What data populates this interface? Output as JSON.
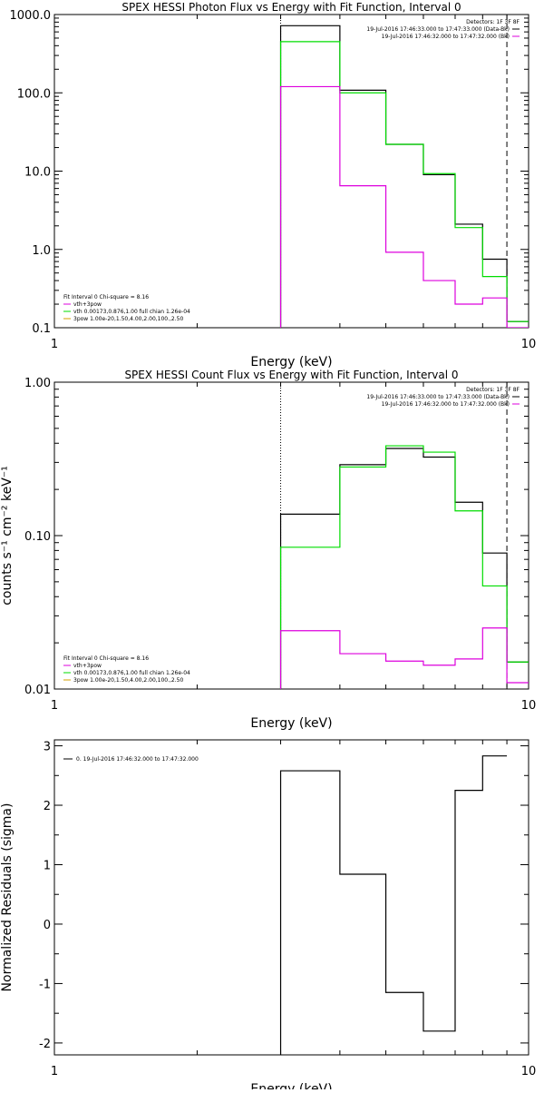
{
  "chart_data": [
    {
      "type": "line",
      "title": "SPEX HESSI Photon Flux vs Energy with Fit Function, Interval 0",
      "xlabel": "Energy (keV)",
      "ylabel": "",
      "xscale": "log",
      "yscale": "log",
      "xlim": [
        1,
        10
      ],
      "ylim": [
        0.1,
        1000
      ],
      "xticks": [
        "1",
        "10"
      ],
      "yticks": [
        "0.1",
        "1.0",
        "10.0",
        "100.0",
        "1000.0"
      ],
      "fit_range_keV": [
        3.0,
        9.0
      ],
      "edges": [
        3.0,
        4.0,
        5.0,
        6.0,
        7.0,
        8.0,
        9.0,
        10.0
      ],
      "series": [
        {
          "color": "#000000",
          "values": [
            720,
            108,
            22,
            9,
            2.1,
            0.75,
            0.12
          ]
        },
        {
          "color": "#00dd00",
          "values": [
            450,
            100,
            22,
            9.3,
            1.9,
            0.45,
            0.12
          ]
        },
        {
          "color": "#dd00dd",
          "values": [
            120,
            6.5,
            0.92,
            0.4,
            0.2,
            0.24,
            0.1
          ]
        }
      ],
      "legend_top": {
        "header": "Detectors: 1F 3F 8F",
        "entries": [
          {
            "text": "19-Jul-2016 17:46:33.000 to 17:47:33.000 (Data-Bk)",
            "color": "#000000"
          },
          {
            "text": "19-Jul-2016 17:46:32.000 to 17:47:32.000 (Bk)",
            "color": "#dd00dd"
          }
        ]
      },
      "legend_bottom": {
        "header": "Fit Interval 0   Chi-square = 8.16",
        "entries": [
          {
            "text": "vth+3pow",
            "color": "#dd00dd"
          },
          {
            "text": "vth 0.00173,0.876,1.00  full chian 1.26e-04",
            "color": "#00dd00"
          },
          {
            "text": "3pow 1.00e-20,1.50,4.00,2.00,100.,2.50",
            "color": "#d4a000"
          }
        ]
      }
    },
    {
      "type": "line",
      "title": "SPEX HESSI Count Flux vs Energy with Fit Function, Interval 0",
      "xlabel": "Energy (keV)",
      "ylabel": "counts s⁻¹ cm⁻² keV⁻¹",
      "xscale": "log",
      "yscale": "log",
      "xlim": [
        1,
        10
      ],
      "ylim": [
        0.01,
        1
      ],
      "xticks": [
        "1",
        "10"
      ],
      "yticks": [
        "0.01",
        "0.10",
        "1.00"
      ],
      "fit_range_keV": [
        3.0,
        9.0
      ],
      "edges": [
        3.0,
        4.0,
        5.0,
        6.0,
        7.0,
        8.0,
        9.0,
        10.0
      ],
      "series": [
        {
          "color": "#000000",
          "values": [
            0.138,
            0.29,
            0.37,
            0.325,
            0.165,
            0.077,
            0.015
          ]
        },
        {
          "color": "#00dd00",
          "values": [
            0.084,
            0.28,
            0.385,
            0.35,
            0.145,
            0.047,
            0.015
          ]
        },
        {
          "color": "#dd00dd",
          "values": [
            0.024,
            0.017,
            0.0152,
            0.0143,
            0.0157,
            0.025,
            0.011
          ]
        }
      ],
      "legend_top": {
        "header": "Detectors: 1F 3F 8F",
        "entries": [
          {
            "text": "19-Jul-2016 17:46:33.000 to 17:47:33.000 (Data-Bk)",
            "color": "#000000"
          },
          {
            "text": "19-Jul-2016 17:46:32.000 to 17:47:32.000 (Bk)",
            "color": "#dd00dd"
          }
        ]
      },
      "legend_bottom": {
        "header": "Fit Interval 0   Chi-square = 8.16",
        "entries": [
          {
            "text": "vth+3pow",
            "color": "#dd00dd"
          },
          {
            "text": "vth 0.00173,0.876,1.00  full chian 1.26e-04",
            "color": "#00dd00"
          },
          {
            "text": "3pow 1.00e-20,1.50,4.00,2.00,100.,2.50",
            "color": "#d4a000"
          }
        ]
      }
    },
    {
      "type": "line",
      "title": "",
      "xlabel": "Energy (keV)",
      "ylabel": "Normalized Residuals (sigma)",
      "xscale": "log",
      "yscale": "linear",
      "xlim": [
        1,
        10
      ],
      "ylim": [
        -2.2,
        3.1
      ],
      "xticks": [
        "1",
        "10"
      ],
      "yticks": [
        "-2",
        "-1",
        "0",
        "1",
        "2",
        "3"
      ],
      "edges": [
        3.0,
        4.0,
        5.0,
        6.0,
        7.0,
        8.0,
        9.0
      ],
      "series": [
        {
          "color": "#000000",
          "values": [
            2.58,
            0.84,
            -1.15,
            -1.8,
            2.25,
            2.83
          ]
        }
      ],
      "legend_top": {
        "entries": [
          {
            "text": "0. 19-Jul-2016 17:46:32.000 to 17:47:32.000",
            "color": "#000000"
          }
        ]
      }
    }
  ]
}
